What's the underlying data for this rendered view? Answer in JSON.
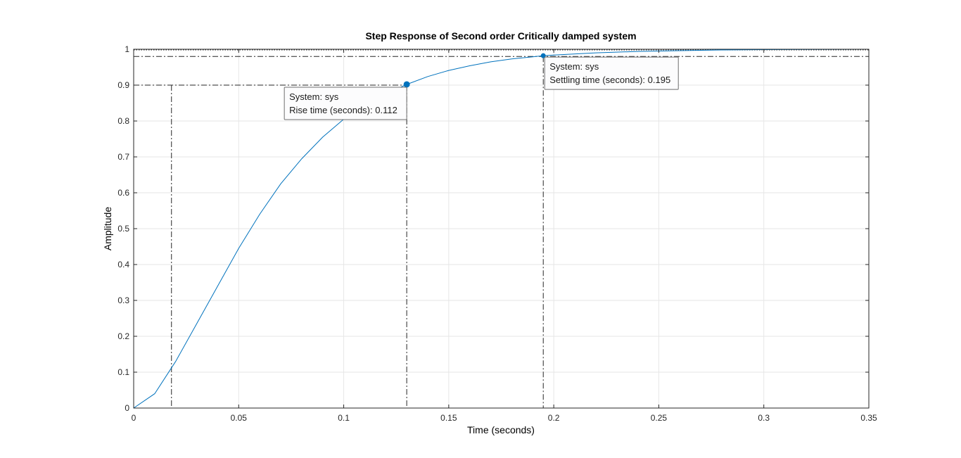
{
  "chart_data": {
    "type": "line",
    "title": "Step Response of Second order Critically damped system",
    "xlabel": "Time (seconds)",
    "ylabel": "Amplitude",
    "xlim": [
      0,
      0.35
    ],
    "ylim": [
      0,
      1
    ],
    "grid": true,
    "xticks": [
      0,
      0.05,
      0.1,
      0.15,
      0.2,
      0.25,
      0.3,
      0.35
    ],
    "xtick_labels": [
      "0",
      "0.05",
      "0.1",
      "0.15",
      "0.2",
      "0.25",
      "0.3",
      "0.35"
    ],
    "yticks": [
      0,
      0.1,
      0.2,
      0.3,
      0.4,
      0.5,
      0.6,
      0.7,
      0.8,
      0.9,
      1
    ],
    "ytick_labels": [
      "0",
      "0.1",
      "0.2",
      "0.3",
      "0.4",
      "0.5",
      "0.6",
      "0.7",
      "0.8",
      "0.9",
      "1"
    ],
    "series": [
      {
        "color": "#0072BD",
        "x": [
          0,
          0.01,
          0.02,
          0.03,
          0.04,
          0.05,
          0.06,
          0.07,
          0.08,
          0.09,
          0.1,
          0.11,
          0.12,
          0.13,
          0.14,
          0.15,
          0.16,
          0.17,
          0.18,
          0.19,
          0.195,
          0.2,
          0.22,
          0.24,
          0.26,
          0.28,
          0.3,
          0.32,
          0.35
        ],
        "y": [
          0,
          0.04,
          0.13,
          0.235,
          0.34,
          0.445,
          0.54,
          0.625,
          0.695,
          0.755,
          0.805,
          0.845,
          0.875,
          0.902,
          0.924,
          0.941,
          0.954,
          0.965,
          0.973,
          0.979,
          0.982,
          0.984,
          0.99,
          0.994,
          0.996,
          0.998,
          0.999,
          0.9995,
          1.0
        ]
      }
    ],
    "reference_lines": {
      "steady_state": 1,
      "rise_low_level": 0.1,
      "rise_high_level": 0.9,
      "settling_level": 0.98,
      "rise_start_time": 0.018,
      "rise_end_time": 0.13,
      "settling_time": 0.195
    },
    "datatips": [
      {
        "name": "rise-time",
        "x": 0.13,
        "y": 0.902,
        "line1": "System: sys",
        "line2": "Rise time (seconds): 0.112"
      },
      {
        "name": "settling-time",
        "x": 0.195,
        "y": 0.982,
        "line1": "System: sys",
        "line2": "Settling time (seconds): 0.195"
      }
    ]
  }
}
